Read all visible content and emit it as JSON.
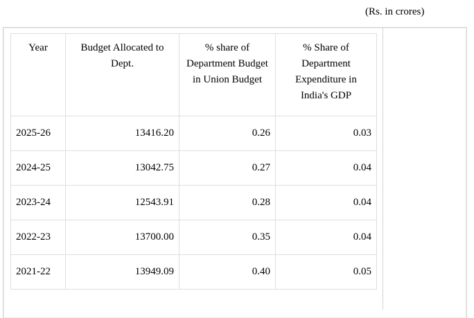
{
  "unit_note": "(Rs. in crores)",
  "table": {
    "headers": {
      "year": "Year",
      "budget": "Budget Allocated to Dept.",
      "share": "% share of Department Budget in Union Budget",
      "gdp": "% Share of Department Expenditure in India's GDP"
    },
    "rows": [
      {
        "year": "2025-26",
        "budget": "13416.20",
        "share": "0.26",
        "gdp": "0.03"
      },
      {
        "year": "2024-25",
        "budget": "13042.75",
        "share": "0.27",
        "gdp": "0.04"
      },
      {
        "year": "2023-24",
        "budget": "12543.91",
        "share": "0.28",
        "gdp": "0.04"
      },
      {
        "year": "2022-23",
        "budget": "13700.00",
        "share": "0.35",
        "gdp": "0.04"
      },
      {
        "year": "2021-22",
        "budget": "13949.09",
        "share": "0.40",
        "gdp": "0.05"
      }
    ]
  }
}
